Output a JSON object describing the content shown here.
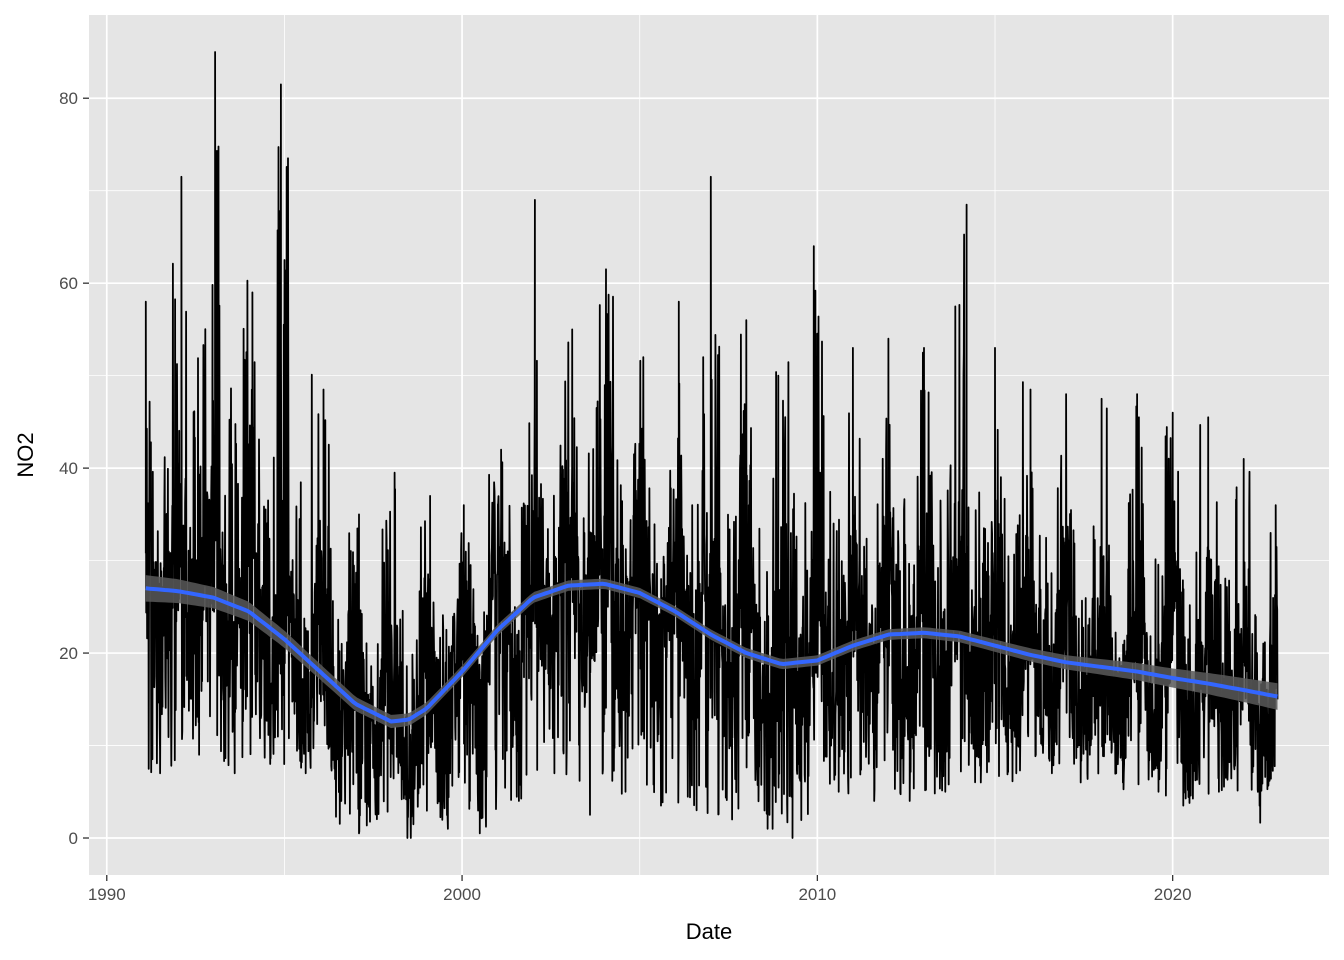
{
  "chart_data": {
    "type": "line",
    "xlabel": "Date",
    "ylabel": "NO2",
    "x_ticks": [
      1990,
      2000,
      2010,
      2020
    ],
    "y_ticks": [
      0,
      20,
      40,
      60,
      80
    ],
    "xlim": [
      1989.5,
      2024.4
    ],
    "ylim": [
      -4,
      89
    ],
    "grid": true,
    "panel_background": "#e5e5e5",
    "grid_color": "#ffffff",
    "series": [
      {
        "kind": "daily-observations",
        "color": "#000000",
        "x_start": 1991.1,
        "x_end": 2022.95,
        "seasonal_peaks": [
          {
            "x": 1991.1,
            "y": 58
          },
          {
            "x": 1992.1,
            "y": 71.5
          },
          {
            "x": 1993.05,
            "y": 85
          },
          {
            "x": 1994.1,
            "y": 59
          },
          {
            "x": 1994.9,
            "y": 81.5
          },
          {
            "x": 1995.1,
            "y": 73.5
          },
          {
            "x": 1996.1,
            "y": 48.5
          },
          {
            "x": 1997.1,
            "y": 35
          },
          {
            "x": 1998.1,
            "y": 39.5
          },
          {
            "x": 1999.1,
            "y": 37
          },
          {
            "x": 2000.05,
            "y": 36
          },
          {
            "x": 2001.1,
            "y": 42
          },
          {
            "x": 2002.05,
            "y": 69
          },
          {
            "x": 2003.1,
            "y": 55
          },
          {
            "x": 2004.05,
            "y": 61.5
          },
          {
            "x": 2005.1,
            "y": 52
          },
          {
            "x": 2006.1,
            "y": 58
          },
          {
            "x": 2007.0,
            "y": 71.5
          },
          {
            "x": 2008.0,
            "y": 56
          },
          {
            "x": 2008.9,
            "y": 50
          },
          {
            "x": 2009.9,
            "y": 64
          },
          {
            "x": 2011.0,
            "y": 53
          },
          {
            "x": 2012.0,
            "y": 54
          },
          {
            "x": 2013.0,
            "y": 53
          },
          {
            "x": 2014.2,
            "y": 68.5
          },
          {
            "x": 2015.0,
            "y": 53
          },
          {
            "x": 2016.0,
            "y": 48.5
          },
          {
            "x": 2017.0,
            "y": 48
          },
          {
            "x": 2018.0,
            "y": 47.5
          },
          {
            "x": 2019.0,
            "y": 48
          },
          {
            "x": 2020.0,
            "y": 46
          },
          {
            "x": 2021.0,
            "y": 45.5
          },
          {
            "x": 2022.0,
            "y": 41
          },
          {
            "x": 2022.9,
            "y": 36
          }
        ],
        "seasonal_troughs": [
          {
            "x": 1991.5,
            "y": 7
          },
          {
            "x": 1992.6,
            "y": 9
          },
          {
            "x": 1993.6,
            "y": 7
          },
          {
            "x": 1994.6,
            "y": 8
          },
          {
            "x": 1995.6,
            "y": 7
          },
          {
            "x": 1996.6,
            "y": 4
          },
          {
            "x": 1997.1,
            "y": 0.5
          },
          {
            "x": 1998.6,
            "y": 3
          },
          {
            "x": 1999.6,
            "y": 1
          },
          {
            "x": 2000.5,
            "y": 0.5
          },
          {
            "x": 2001.6,
            "y": 4
          },
          {
            "x": 2002.6,
            "y": 7
          },
          {
            "x": 2003.6,
            "y": 2.5
          },
          {
            "x": 2004.6,
            "y": 5
          },
          {
            "x": 2005.6,
            "y": 3.5
          },
          {
            "x": 2006.6,
            "y": 3
          },
          {
            "x": 2007.6,
            "y": 2
          },
          {
            "x": 2008.6,
            "y": 1
          },
          {
            "x": 2009.3,
            "y": 0
          },
          {
            "x": 2010.6,
            "y": 5
          },
          {
            "x": 2011.6,
            "y": 4
          },
          {
            "x": 2012.6,
            "y": 4
          },
          {
            "x": 2013.6,
            "y": 5
          },
          {
            "x": 2014.6,
            "y": 6
          },
          {
            "x": 2015.6,
            "y": 7
          },
          {
            "x": 2016.6,
            "y": 7
          },
          {
            "x": 2017.6,
            "y": 7
          },
          {
            "x": 2018.6,
            "y": 6
          },
          {
            "x": 2019.6,
            "y": 5
          },
          {
            "x": 2020.3,
            "y": 3.5
          },
          {
            "x": 2021.3,
            "y": 5
          },
          {
            "x": 2022.4,
            "y": 5
          }
        ]
      },
      {
        "kind": "smoothed-trend",
        "color": "#3366ff",
        "ribbon_color": "#595959",
        "x": [
          1991.1,
          1992.0,
          1993.0,
          1994.0,
          1995.0,
          1996.0,
          1997.0,
          1998.0,
          1998.5,
          1999.0,
          2000.0,
          2001.0,
          2002.0,
          2003.0,
          2004.0,
          2005.0,
          2006.0,
          2007.0,
          2008.0,
          2009.0,
          2010.0,
          2011.0,
          2012.0,
          2013.0,
          2014.0,
          2015.0,
          2016.0,
          2017.0,
          2018.0,
          2019.0,
          2020.0,
          2021.0,
          2022.0,
          2022.95
        ],
        "y": [
          27.0,
          26.7,
          26.0,
          24.5,
          21.5,
          18.0,
          14.5,
          12.6,
          12.8,
          14.0,
          18.0,
          22.5,
          26.0,
          27.3,
          27.5,
          26.5,
          24.5,
          22.0,
          20.0,
          18.8,
          19.2,
          20.8,
          22.0,
          22.2,
          21.8,
          20.8,
          19.8,
          19.0,
          18.5,
          18.0,
          17.3,
          16.7,
          16.0,
          15.3
        ]
      }
    ]
  }
}
